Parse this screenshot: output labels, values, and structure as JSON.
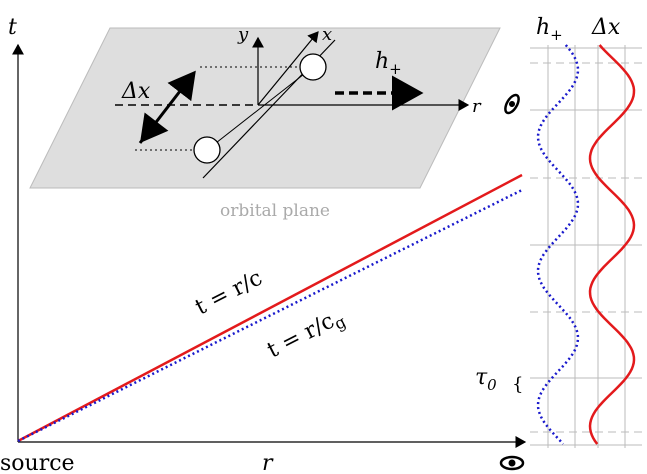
{
  "axes": {
    "t": "t",
    "r": "r",
    "source": "source"
  },
  "inset": {
    "caption": "orbital plane",
    "x": "x",
    "y": "y",
    "r": "r",
    "delta": "Δx",
    "wave": {
      "text": "h",
      "sub": "+"
    }
  },
  "lines": [
    {
      "text": "t = r/c",
      "sub": ""
    },
    {
      "text": "t = r/c",
      "sub": "g"
    }
  ],
  "panel": {
    "h": {
      "text": "h",
      "sub": "+"
    },
    "dx": "Δx",
    "period": {
      "text": "τ",
      "sub": "0"
    }
  }
}
